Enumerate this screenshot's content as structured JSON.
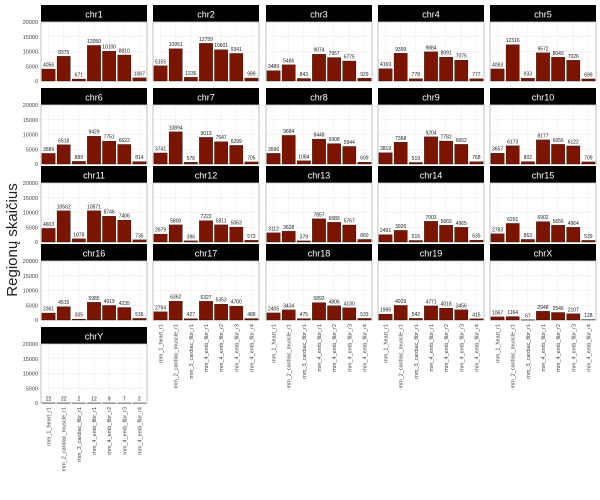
{
  "chart_data": {
    "type": "bar",
    "title": "",
    "ylabel": "Regionų skaičius",
    "xlabel": "",
    "ylim": [
      0,
      20000
    ],
    "yticks": [
      0,
      5000,
      10000,
      15000,
      20000
    ],
    "categories": [
      "mm_1_heart_r1",
      "mm_2_cardiac_muscle_r1",
      "mm_3_cardiac_fibr_r1",
      "mm_4_emb_fibr_r1",
      "mm_4_emb_fibr_r2",
      "mm_4_emb_fibr_r3",
      "mm_4_emb_fibr_r4"
    ],
    "colors": {
      "bar": "#7b1500",
      "bar_stroke": "#000000",
      "strip": "#000000",
      "strip_text": "#ffffff",
      "grid": "#ebebeb"
    },
    "grid": true,
    "facets": [
      {
        "name": "chr1",
        "values": [
          4056,
          8375,
          671,
          12050,
          10100,
          8810,
          1067
        ]
      },
      {
        "name": "chr2",
        "values": [
          5155,
          10951,
          1236,
          12759,
          10601,
          9341,
          999
        ]
      },
      {
        "name": "chr3",
        "values": [
          3489,
          5486,
          843,
          9074,
          7957,
          6775,
          929
        ]
      },
      {
        "name": "chr4",
        "values": [
          4169,
          9399,
          778,
          9884,
          8091,
          7075,
          777
        ]
      },
      {
        "name": "chr5",
        "values": [
          4093,
          12316,
          933,
          9572,
          8043,
          7026,
          699
        ]
      },
      {
        "name": "chr6",
        "values": [
          3589,
          6518,
          889,
          9429,
          7751,
          6622,
          814
        ]
      },
      {
        "name": "chr7",
        "values": [
          3741,
          10894,
          576,
          9013,
          7547,
          6299,
          705
        ]
      },
      {
        "name": "chr8",
        "values": [
          3596,
          9684,
          1084,
          8448,
          6908,
          5944,
          609
        ]
      },
      {
        "name": "chr9",
        "values": [
          3819,
          7368,
          519,
          9204,
          7782,
          6652,
          768
        ]
      },
      {
        "name": "chr10",
        "values": [
          3657,
          6173,
          802,
          8177,
          6656,
          6122,
          709
        ]
      },
      {
        "name": "chr11",
        "values": [
          4603,
          10562,
          1078,
          10571,
          8746,
          7406,
          735
        ]
      },
      {
        "name": "chr12",
        "values": [
          2679,
          5800,
          396,
          7222,
          5811,
          5063,
          573
        ]
      },
      {
        "name": "chr13",
        "values": [
          3112,
          3628,
          379,
          7857,
          6689,
          5767,
          860
        ]
      },
      {
        "name": "chr14",
        "values": [
          2491,
          3926,
          515,
          7003,
          5669,
          4965,
          635
        ]
      },
      {
        "name": "chr15",
        "values": [
          2783,
          6291,
          863,
          6902,
          5656,
          4964,
          539
        ]
      },
      {
        "name": "chr16",
        "values": [
          2361,
          4515,
          305,
          5985,
          4919,
          4235,
          536
        ]
      },
      {
        "name": "chr17",
        "values": [
          2794,
          6362,
          427,
          6327,
          5353,
          4700,
          488
        ]
      },
      {
        "name": "chr18",
        "values": [
          2405,
          3434,
          475,
          5892,
          4806,
          4130,
          533
        ]
      },
      {
        "name": "chr19",
        "values": [
          1995,
          4929,
          542,
          4771,
          4018,
          3456,
          415
        ]
      },
      {
        "name": "chrX",
        "values": [
          1067,
          1164,
          67,
          2948,
          2546,
          2107,
          128
        ]
      },
      {
        "name": "chrY",
        "values": [
          22,
          22,
          2,
          12,
          9,
          7,
          2
        ]
      }
    ]
  }
}
